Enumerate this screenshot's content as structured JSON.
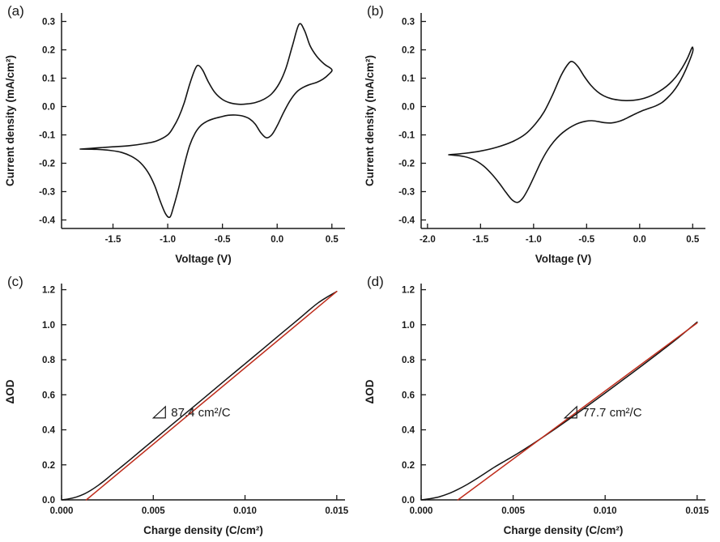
{
  "figure": {
    "background": "#ffffff",
    "ink": "#1a1a1a"
  },
  "panels": [
    {
      "label": "(a)"
    },
    {
      "label": "(b)"
    },
    {
      "label": "(c)"
    },
    {
      "label": "(d)"
    }
  ],
  "chart_data": [
    {
      "type": "line",
      "panel_label": "(a)",
      "title": "",
      "xlabel": "Voltage (V)",
      "ylabel": "Current density (mA/cm²)",
      "xlim": [
        -1.97,
        0.62
      ],
      "ylim": [
        -0.43,
        0.33
      ],
      "grid": false,
      "legend": "none",
      "xticks": [
        {
          "v": -1.5,
          "label": "-1.5"
        },
        {
          "v": -1.0,
          "label": "-1.0"
        },
        {
          "v": -0.5,
          "label": "-0.5"
        },
        {
          "v": 0.0,
          "label": "0.0"
        },
        {
          "v": 0.5,
          "label": "0.5"
        }
      ],
      "yticks": [
        {
          "v": -0.4,
          "label": "-0.4"
        },
        {
          "v": -0.3,
          "label": "-0.3"
        },
        {
          "v": -0.2,
          "label": "-0.2"
        },
        {
          "v": -0.1,
          "label": "-0.1"
        },
        {
          "v": 0.0,
          "label": "0.0"
        },
        {
          "v": 0.1,
          "label": "0.1"
        },
        {
          "v": 0.2,
          "label": "0.2"
        },
        {
          "v": 0.3,
          "label": "0.3"
        }
      ],
      "series": [
        {
          "name": "cyclic-voltammogram",
          "color": "#141414",
          "width": 1.6,
          "smooth": true,
          "points": [
            [
              -1.8,
              -0.15
            ],
            [
              -1.65,
              -0.146
            ],
            [
              -1.5,
              -0.142
            ],
            [
              -1.35,
              -0.138
            ],
            [
              -1.2,
              -0.13
            ],
            [
              -1.1,
              -0.121
            ],
            [
              -1.0,
              -0.1
            ],
            [
              -0.95,
              -0.074
            ],
            [
              -0.9,
              -0.038
            ],
            [
              -0.85,
              0.012
            ],
            [
              -0.8,
              0.078
            ],
            [
              -0.75,
              0.132
            ],
            [
              -0.72,
              0.145
            ],
            [
              -0.68,
              0.128
            ],
            [
              -0.63,
              0.088
            ],
            [
              -0.57,
              0.05
            ],
            [
              -0.5,
              0.025
            ],
            [
              -0.43,
              0.013
            ],
            [
              -0.35,
              0.008
            ],
            [
              -0.28,
              0.009
            ],
            [
              -0.2,
              0.014
            ],
            [
              -0.12,
              0.026
            ],
            [
              -0.05,
              0.045
            ],
            [
              0.02,
              0.082
            ],
            [
              0.08,
              0.135
            ],
            [
              0.14,
              0.215
            ],
            [
              0.2,
              0.29
            ],
            [
              0.25,
              0.268
            ],
            [
              0.3,
              0.215
            ],
            [
              0.36,
              0.178
            ],
            [
              0.43,
              0.15
            ],
            [
              0.5,
              0.13
            ],
            [
              0.47,
              0.113
            ],
            [
              0.42,
              0.097
            ],
            [
              0.36,
              0.085
            ],
            [
              0.3,
              0.078
            ],
            [
              0.24,
              0.068
            ],
            [
              0.18,
              0.052
            ],
            [
              0.12,
              0.022
            ],
            [
              0.06,
              -0.02
            ],
            [
              0.0,
              -0.068
            ],
            [
              -0.05,
              -0.1
            ],
            [
              -0.1,
              -0.11
            ],
            [
              -0.15,
              -0.092
            ],
            [
              -0.2,
              -0.062
            ],
            [
              -0.25,
              -0.044
            ],
            [
              -0.31,
              -0.034
            ],
            [
              -0.38,
              -0.03
            ],
            [
              -0.45,
              -0.031
            ],
            [
              -0.52,
              -0.037
            ],
            [
              -0.58,
              -0.043
            ],
            [
              -0.64,
              -0.052
            ],
            [
              -0.7,
              -0.068
            ],
            [
              -0.75,
              -0.094
            ],
            [
              -0.8,
              -0.138
            ],
            [
              -0.85,
              -0.208
            ],
            [
              -0.9,
              -0.288
            ],
            [
              -0.95,
              -0.358
            ],
            [
              -0.98,
              -0.39
            ],
            [
              -1.02,
              -0.378
            ],
            [
              -1.07,
              -0.332
            ],
            [
              -1.12,
              -0.278
            ],
            [
              -1.18,
              -0.232
            ],
            [
              -1.25,
              -0.198
            ],
            [
              -1.33,
              -0.176
            ],
            [
              -1.42,
              -0.162
            ],
            [
              -1.52,
              -0.155
            ],
            [
              -1.65,
              -0.151
            ],
            [
              -1.8,
              -0.15
            ]
          ]
        }
      ],
      "annotations": []
    },
    {
      "type": "line",
      "panel_label": "(b)",
      "title": "",
      "xlabel": "Voltage (V)",
      "ylabel": "Current density (mA/cm²)",
      "xlim": [
        -2.06,
        0.62
      ],
      "ylim": [
        -0.43,
        0.33
      ],
      "grid": false,
      "legend": "none",
      "xticks": [
        {
          "v": -2.0,
          "label": "-2.0"
        },
        {
          "v": -1.5,
          "label": "-1.5"
        },
        {
          "v": -1.0,
          "label": "-1.0"
        },
        {
          "v": -0.5,
          "label": "-0.5"
        },
        {
          "v": 0.0,
          "label": "0.0"
        },
        {
          "v": 0.5,
          "label": "0.5"
        }
      ],
      "yticks": [
        {
          "v": -0.4,
          "label": "-0.4"
        },
        {
          "v": -0.3,
          "label": "-0.3"
        },
        {
          "v": -0.2,
          "label": "-0.2"
        },
        {
          "v": -0.1,
          "label": "-0.1"
        },
        {
          "v": 0.0,
          "label": "0.0"
        },
        {
          "v": 0.1,
          "label": "0.1"
        },
        {
          "v": 0.2,
          "label": "0.2"
        },
        {
          "v": 0.3,
          "label": "0.3"
        }
      ],
      "series": [
        {
          "name": "cyclic-voltammogram",
          "color": "#141414",
          "width": 1.6,
          "smooth": true,
          "points": [
            [
              -1.8,
              -0.17
            ],
            [
              -1.65,
              -0.165
            ],
            [
              -1.5,
              -0.157
            ],
            [
              -1.35,
              -0.144
            ],
            [
              -1.2,
              -0.124
            ],
            [
              -1.08,
              -0.098
            ],
            [
              -0.98,
              -0.06
            ],
            [
              -0.9,
              -0.018
            ],
            [
              -0.82,
              0.042
            ],
            [
              -0.74,
              0.11
            ],
            [
              -0.67,
              0.152
            ],
            [
              -0.63,
              0.158
            ],
            [
              -0.58,
              0.14
            ],
            [
              -0.52,
              0.105
            ],
            [
              -0.46,
              0.075
            ],
            [
              -0.4,
              0.053
            ],
            [
              -0.34,
              0.038
            ],
            [
              -0.27,
              0.028
            ],
            [
              -0.2,
              0.023
            ],
            [
              -0.13,
              0.021
            ],
            [
              -0.06,
              0.022
            ],
            [
              0.01,
              0.026
            ],
            [
              0.08,
              0.034
            ],
            [
              0.15,
              0.046
            ],
            [
              0.22,
              0.062
            ],
            [
              0.28,
              0.08
            ],
            [
              0.34,
              0.104
            ],
            [
              0.4,
              0.136
            ],
            [
              0.45,
              0.17
            ],
            [
              0.49,
              0.205
            ],
            [
              0.5,
              0.208
            ],
            [
              0.5,
              0.193
            ],
            [
              0.46,
              0.152
            ],
            [
              0.41,
              0.11
            ],
            [
              0.36,
              0.076
            ],
            [
              0.31,
              0.05
            ],
            [
              0.26,
              0.03
            ],
            [
              0.21,
              0.014
            ],
            [
              0.15,
              0.002
            ],
            [
              0.09,
              -0.006
            ],
            [
              0.03,
              -0.014
            ],
            [
              -0.03,
              -0.024
            ],
            [
              -0.09,
              -0.035
            ],
            [
              -0.15,
              -0.046
            ],
            [
              -0.21,
              -0.054
            ],
            [
              -0.27,
              -0.058
            ],
            [
              -0.33,
              -0.057
            ],
            [
              -0.39,
              -0.053
            ],
            [
              -0.45,
              -0.05
            ],
            [
              -0.51,
              -0.052
            ],
            [
              -0.57,
              -0.058
            ],
            [
              -0.63,
              -0.068
            ],
            [
              -0.69,
              -0.082
            ],
            [
              -0.75,
              -0.1
            ],
            [
              -0.81,
              -0.124
            ],
            [
              -0.87,
              -0.155
            ],
            [
              -0.93,
              -0.195
            ],
            [
              -0.99,
              -0.243
            ],
            [
              -1.05,
              -0.29
            ],
            [
              -1.1,
              -0.322
            ],
            [
              -1.15,
              -0.338
            ],
            [
              -1.2,
              -0.33
            ],
            [
              -1.26,
              -0.303
            ],
            [
              -1.32,
              -0.272
            ],
            [
              -1.39,
              -0.24
            ],
            [
              -1.47,
              -0.21
            ],
            [
              -1.56,
              -0.188
            ],
            [
              -1.66,
              -0.176
            ],
            [
              -1.8,
              -0.17
            ]
          ]
        }
      ],
      "annotations": []
    },
    {
      "type": "line",
      "panel_label": "(c)",
      "title": "",
      "xlabel": "Charge density (C/cm²)",
      "ylabel": "ΔOD",
      "xlim": [
        0.0,
        0.01545
      ],
      "ylim": [
        0.0,
        1.235
      ],
      "grid": false,
      "legend": "none",
      "xticks": [
        {
          "v": 0.0,
          "label": "0.000"
        },
        {
          "v": 0.005,
          "label": "0.005"
        },
        {
          "v": 0.01,
          "label": "0.010"
        },
        {
          "v": 0.015,
          "label": "0.015"
        }
      ],
      "yticks": [
        {
          "v": 0.0,
          "label": "0.0"
        },
        {
          "v": 0.2,
          "label": "0.2"
        },
        {
          "v": 0.4,
          "label": "0.4"
        },
        {
          "v": 0.6,
          "label": "0.6"
        },
        {
          "v": 0.8,
          "label": "0.8"
        },
        {
          "v": 1.0,
          "label": "1.0"
        },
        {
          "v": 1.2,
          "label": "1.2"
        }
      ],
      "series": [
        {
          "name": "measured-delta-od",
          "color": "#141414",
          "width": 1.5,
          "smooth": true,
          "points": [
            [
              0.0,
              0.0
            ],
            [
              0.0004,
              0.006
            ],
            [
              0.0008,
              0.016
            ],
            [
              0.0012,
              0.032
            ],
            [
              0.0016,
              0.055
            ],
            [
              0.002,
              0.083
            ],
            [
              0.0024,
              0.115
            ],
            [
              0.0028,
              0.15
            ],
            [
              0.0033,
              0.192
            ],
            [
              0.0038,
              0.235
            ],
            [
              0.0044,
              0.288
            ],
            [
              0.005,
              0.34
            ],
            [
              0.006,
              0.428
            ],
            [
              0.007,
              0.515
            ],
            [
              0.008,
              0.602
            ],
            [
              0.009,
              0.69
            ],
            [
              0.01,
              0.777
            ],
            [
              0.011,
              0.864
            ],
            [
              0.012,
              0.952
            ],
            [
              0.013,
              1.039
            ],
            [
              0.014,
              1.126
            ],
            [
              0.015,
              1.19
            ]
          ]
        },
        {
          "name": "linear-fit",
          "color": "#bf2c1b",
          "width": 1.5,
          "smooth": false,
          "points": [
            [
              0.00135,
              0.0
            ],
            [
              0.015,
              1.19
            ]
          ]
        }
      ],
      "annotations": [
        {
          "x": 0.005,
          "y": 0.5,
          "text": "87.4 cm²/C",
          "triangle": true,
          "slope_value": "87.4",
          "slope_units": "cm²/C"
        }
      ]
    },
    {
      "type": "line",
      "panel_label": "(d)",
      "title": "",
      "xlabel": "Charge density (C/cm²)",
      "ylabel": "ΔOD",
      "xlim": [
        0.0,
        0.01545
      ],
      "ylim": [
        0.0,
        1.235
      ],
      "grid": false,
      "legend": "none",
      "xticks": [
        {
          "v": 0.0,
          "label": "0.000"
        },
        {
          "v": 0.005,
          "label": "0.005"
        },
        {
          "v": 0.01,
          "label": "0.010"
        },
        {
          "v": 0.015,
          "label": "0.015"
        }
      ],
      "yticks": [
        {
          "v": 0.0,
          "label": "0.0"
        },
        {
          "v": 0.2,
          "label": "0.2"
        },
        {
          "v": 0.4,
          "label": "0.4"
        },
        {
          "v": 0.6,
          "label": "0.6"
        },
        {
          "v": 0.8,
          "label": "0.8"
        },
        {
          "v": 1.0,
          "label": "1.0"
        },
        {
          "v": 1.2,
          "label": "1.2"
        }
      ],
      "series": [
        {
          "name": "measured-delta-od",
          "color": "#141414",
          "width": 1.5,
          "smooth": true,
          "points": [
            [
              0.0,
              0.0
            ],
            [
              0.0005,
              0.007
            ],
            [
              0.001,
              0.018
            ],
            [
              0.0015,
              0.036
            ],
            [
              0.002,
              0.06
            ],
            [
              0.0025,
              0.088
            ],
            [
              0.003,
              0.12
            ],
            [
              0.0035,
              0.154
            ],
            [
              0.004,
              0.188
            ],
            [
              0.0046,
              0.225
            ],
            [
              0.0052,
              0.262
            ],
            [
              0.006,
              0.315
            ],
            [
              0.007,
              0.385
            ],
            [
              0.008,
              0.458
            ],
            [
              0.009,
              0.533
            ],
            [
              0.01,
              0.61
            ],
            [
              0.011,
              0.688
            ],
            [
              0.012,
              0.766
            ],
            [
              0.013,
              0.846
            ],
            [
              0.014,
              0.928
            ],
            [
              0.015,
              1.015
            ]
          ]
        },
        {
          "name": "linear-fit",
          "color": "#bf2c1b",
          "width": 1.5,
          "smooth": false,
          "points": [
            [
              0.002,
              0.0
            ],
            [
              0.015,
              1.01
            ]
          ]
        }
      ],
      "annotations": [
        {
          "x": 0.0078,
          "y": 0.5,
          "text": "77.7 cm²/C",
          "triangle": true,
          "slope_value": "77.7",
          "slope_units": "cm²/C"
        }
      ]
    }
  ]
}
